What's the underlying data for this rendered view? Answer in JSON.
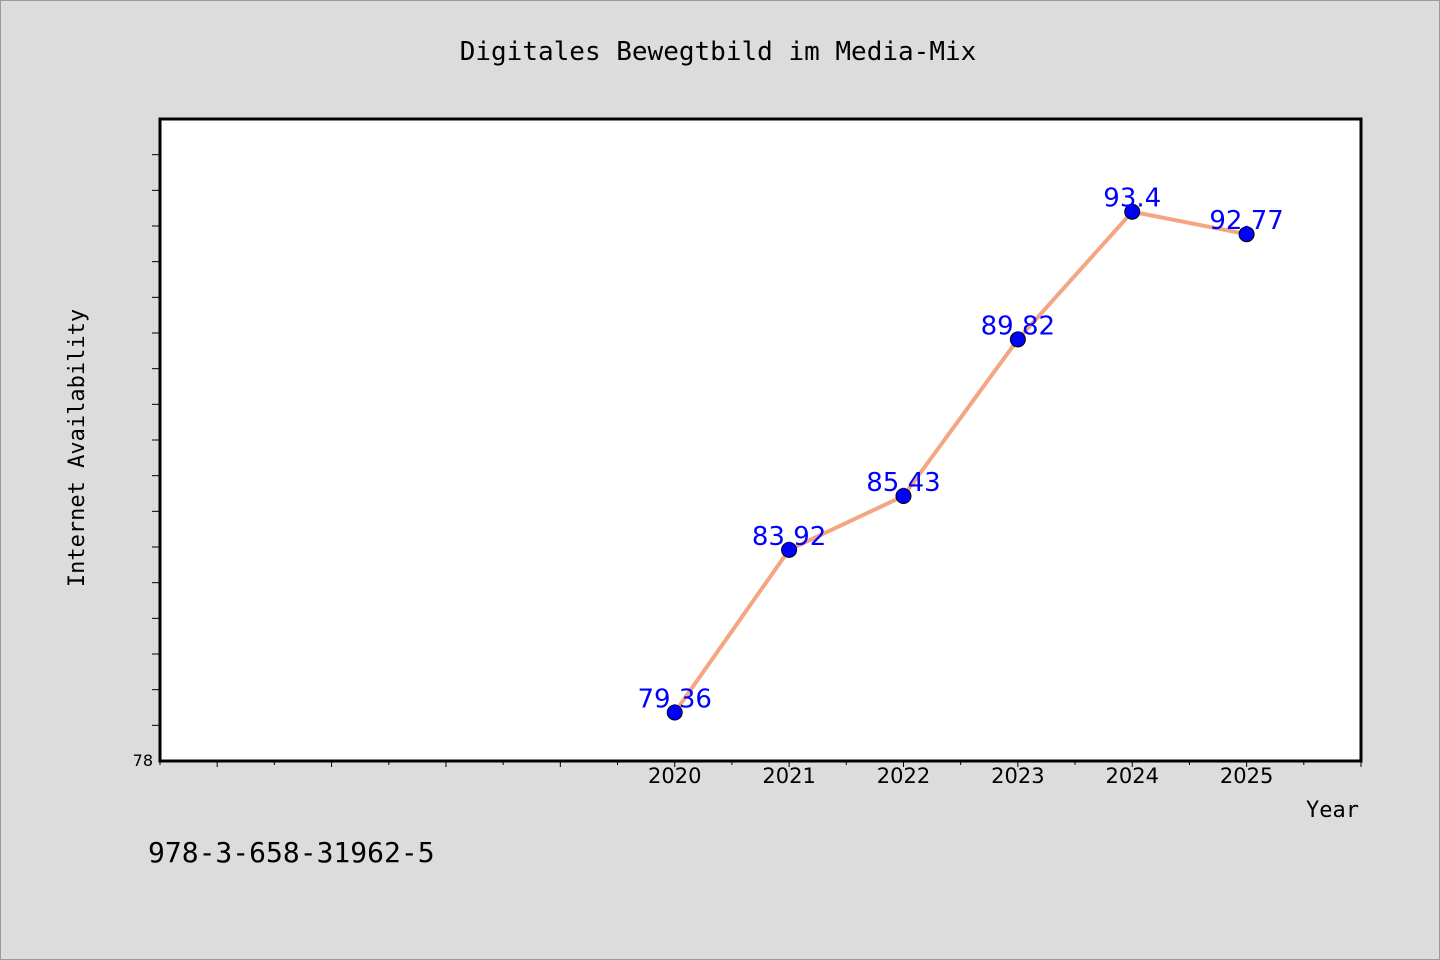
{
  "chart_data": {
    "type": "line",
    "title": "Digitales Bewegtbild im Media-Mix",
    "xlabel": "Year",
    "ylabel": "Internet Availability",
    "x": [
      2020,
      2021,
      2022,
      2023,
      2024,
      2025
    ],
    "series": [
      {
        "values": [
          79.36,
          83.92,
          85.43,
          89.82,
          93.4,
          92.77
        ],
        "labels": [
          "79.36",
          "83.92",
          "85.43",
          "89.82",
          "93.4",
          "92.77"
        ]
      }
    ],
    "ylim": [
      78,
      96
    ],
    "xlim": [
      2015.5,
      2026
    ],
    "y_tick_labels": [
      "78"
    ],
    "grid": false,
    "legend": "none"
  },
  "footnote": "978-3-658-31962-5",
  "colors": {
    "background": "#dcdcdc",
    "plot_area": "#ffffff",
    "line": "#f4a582",
    "marker": "#0000ff",
    "data_label": "#0000ff"
  }
}
